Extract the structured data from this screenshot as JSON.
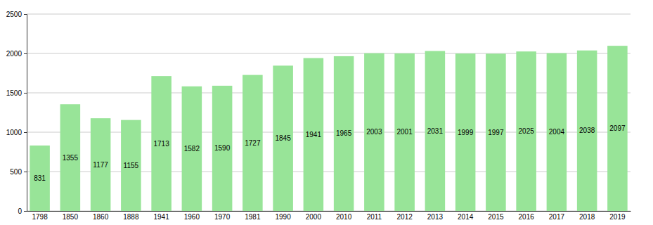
{
  "chart_data": {
    "type": "bar",
    "categories": [
      "1798",
      "1850",
      "1860",
      "1888",
      "1941",
      "1960",
      "1970",
      "1981",
      "1990",
      "2000",
      "2010",
      "2011",
      "2012",
      "2013",
      "2014",
      "2015",
      "2016",
      "2017",
      "2018",
      "2019"
    ],
    "values": [
      831,
      1355,
      1177,
      1155,
      1713,
      1582,
      1590,
      1727,
      1845,
      1941,
      1965,
      2003,
      2001,
      2031,
      1999,
      1997,
      2025,
      2004,
      2038,
      2097
    ],
    "color": "#98e498",
    "ylim": [
      0,
      2500
    ],
    "yticks": [
      0,
      500,
      1000,
      1500,
      2000,
      2500
    ],
    "grid": true,
    "data_labels": true
  }
}
